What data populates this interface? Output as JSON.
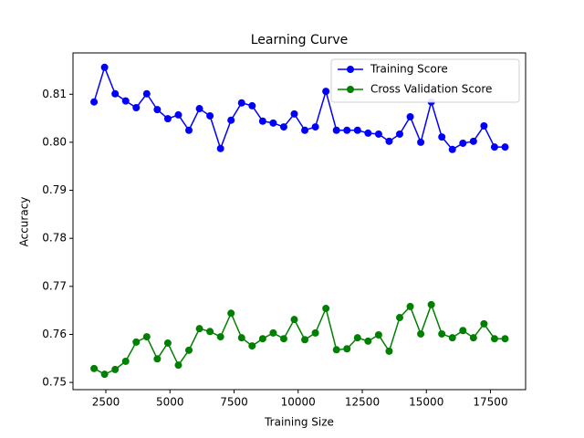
{
  "chart_data": {
    "type": "line",
    "title": "Learning Curve",
    "x_label": "Training Size",
    "y_label": "Accuracy",
    "x": [
      2040,
      2451,
      2862,
      3273,
      3684,
      4095,
      4506,
      4917,
      5328,
      5739,
      6150,
      6561,
      6972,
      7383,
      7794,
      8205,
      8616,
      9027,
      9438,
      9849,
      10260,
      10671,
      11082,
      11493,
      11904,
      12315,
      12726,
      13137,
      13548,
      13959,
      14370,
      14781,
      15192,
      15603,
      16014,
      16425,
      16836,
      17247,
      17658,
      18069
    ],
    "series": [
      {
        "name": "Training Score",
        "color": "#0000ff",
        "values": [
          0.8084,
          0.8156,
          0.8101,
          0.8086,
          0.8072,
          0.8101,
          0.8068,
          0.8049,
          0.8057,
          0.8025,
          0.807,
          0.8055,
          0.7987,
          0.8046,
          0.8082,
          0.8076,
          0.8044,
          0.804,
          0.8032,
          0.8059,
          0.8025,
          0.8032,
          0.8106,
          0.8025,
          0.8025,
          0.8025,
          0.8019,
          0.8017,
          0.8002,
          0.8017,
          0.8053,
          0.8,
          0.8084,
          0.8011,
          0.7985,
          0.7998,
          0.8002,
          0.8034,
          0.799,
          0.799
        ]
      },
      {
        "name": "Cross Validation Score",
        "color": "#008000",
        "values": [
          0.7529,
          0.7517,
          0.7527,
          0.7544,
          0.7584,
          0.7595,
          0.7549,
          0.7582,
          0.7536,
          0.7567,
          0.7612,
          0.7606,
          0.7595,
          0.7644,
          0.7593,
          0.7576,
          0.7591,
          0.7603,
          0.7591,
          0.7631,
          0.7589,
          0.7603,
          0.7654,
          0.7568,
          0.757,
          0.7593,
          0.7586,
          0.7599,
          0.7565,
          0.7635,
          0.7658,
          0.7601,
          0.7662,
          0.7601,
          0.7593,
          0.7608,
          0.7593,
          0.7622,
          0.7591,
          0.7591
        ]
      }
    ],
    "xlim": [
      1219,
      18870
    ],
    "xticks": [
      2500,
      5000,
      7500,
      10000,
      12500,
      15000,
      17500
    ],
    "ylim": [
      0.7485,
      0.8186
    ],
    "yticks": [
      0.75,
      0.76,
      0.77,
      0.78,
      0.79,
      {
        "value": 0.8,
        "label": "0.80"
      },
      0.81
    ],
    "legend": "upper right",
    "grid": false
  }
}
